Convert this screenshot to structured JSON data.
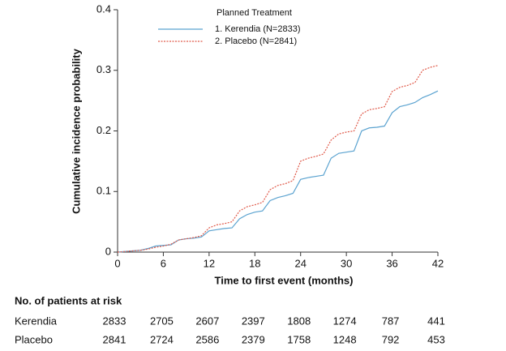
{
  "chart_data": {
    "type": "line",
    "x_label": "Time to first event (months)",
    "y_label": "Cumulative incidence probability",
    "legend_title": "Planned Treatment",
    "x": [
      0,
      1,
      2,
      3,
      4,
      5,
      6,
      7,
      8,
      9,
      10,
      11,
      12,
      13,
      14,
      15,
      16,
      17,
      18,
      19,
      20,
      21,
      22,
      23,
      24,
      25,
      26,
      27,
      28,
      29,
      30,
      31,
      32,
      33,
      34,
      35,
      36,
      37,
      38,
      39,
      40,
      41,
      42
    ],
    "series": [
      {
        "name": "1. Kerendia (N=2833)",
        "color": "#5ba3d0",
        "dash": false,
        "values": [
          0,
          0.001,
          0.002,
          0.003,
          0.006,
          0.01,
          0.011,
          0.012,
          0.02,
          0.022,
          0.023,
          0.025,
          0.035,
          0.037,
          0.039,
          0.04,
          0.055,
          0.062,
          0.066,
          0.068,
          0.085,
          0.09,
          0.093,
          0.097,
          0.12,
          0.123,
          0.125,
          0.127,
          0.155,
          0.163,
          0.165,
          0.167,
          0.2,
          0.205,
          0.206,
          0.208,
          0.23,
          0.24,
          0.243,
          0.247,
          0.255,
          0.26,
          0.266
        ]
      },
      {
        "name": "2. Placebo (N=2841)",
        "color": "#e05a4a",
        "dash": true,
        "values": [
          0,
          0.001,
          0.002,
          0.003,
          0.005,
          0.008,
          0.01,
          0.013,
          0.02,
          0.022,
          0.024,
          0.027,
          0.04,
          0.045,
          0.047,
          0.05,
          0.068,
          0.075,
          0.078,
          0.082,
          0.103,
          0.11,
          0.113,
          0.118,
          0.15,
          0.155,
          0.158,
          0.162,
          0.185,
          0.195,
          0.198,
          0.2,
          0.228,
          0.235,
          0.237,
          0.24,
          0.265,
          0.272,
          0.275,
          0.28,
          0.3,
          0.305,
          0.308
        ]
      }
    ],
    "xlim": [
      0,
      42
    ],
    "xticks": [
      0,
      6,
      12,
      18,
      24,
      30,
      36,
      42
    ],
    "ylim": [
      0,
      0.4
    ],
    "yticks": [
      0,
      0.1,
      0.2,
      0.3,
      0.4
    ],
    "grid": false
  },
  "risk_table": {
    "title": "No. of patients at risk",
    "rows": [
      {
        "label": "Kerendia",
        "values": [
          2833,
          2705,
          2607,
          2397,
          1808,
          1274,
          787,
          441
        ]
      },
      {
        "label": "Placebo",
        "values": [
          2841,
          2724,
          2586,
          2379,
          1758,
          1248,
          792,
          453
        ]
      }
    ]
  }
}
